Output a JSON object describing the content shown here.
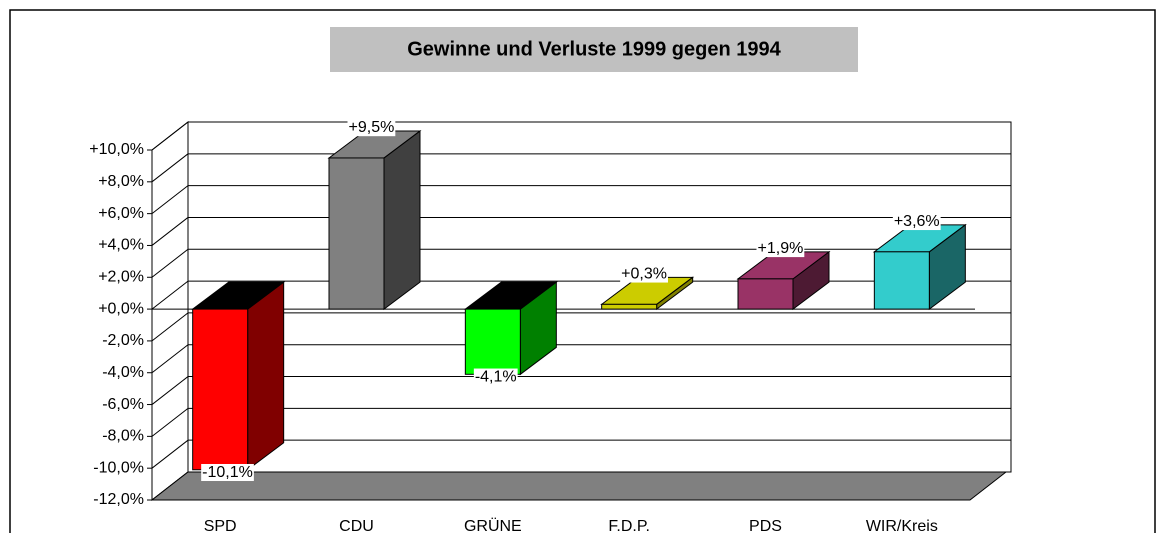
{
  "chart_data": {
    "type": "bar3d",
    "title": "Gewinne und Verluste 1999 gegen 1994",
    "categories": [
      "SPD",
      "CDU",
      "GRÜNE",
      "F.D.P.",
      "PDS",
      "WIR/Kreis"
    ],
    "values": [
      -10.1,
      9.5,
      -4.1,
      0.3,
      1.9,
      3.6
    ],
    "value_labels": [
      "-10,1%",
      "+9,5%",
      "-4,1%",
      "+0,3%",
      "+1,9%",
      "+3,6%"
    ],
    "colors": [
      "#ff0000",
      "#808080",
      "#00ff00",
      "#cccc00",
      "#993366",
      "#33cccc"
    ],
    "side_colors": [
      "#800000",
      "#404040",
      "#008000",
      "#808000",
      "#4d1a33",
      "#1a6666"
    ],
    "ylim": [
      -12,
      10
    ],
    "yticks": [
      {
        "value": -12,
        "label": "-12,0%"
      },
      {
        "value": -10,
        "label": "-10,0%"
      },
      {
        "value": -8,
        "label": "-8,0%"
      },
      {
        "value": -6,
        "label": "-6,0%"
      },
      {
        "value": -4,
        "label": "-4,0%"
      },
      {
        "value": -2,
        "label": "-2,0%"
      },
      {
        "value": 0,
        "label": "+0,0%"
      },
      {
        "value": 2,
        "label": "+2,0%"
      },
      {
        "value": 4,
        "label": "+4,0%"
      },
      {
        "value": 6,
        "label": "+6,0%"
      },
      {
        "value": 8,
        "label": "+8,0%"
      },
      {
        "value": 10,
        "label": "+10,0%"
      }
    ],
    "grid": true
  }
}
